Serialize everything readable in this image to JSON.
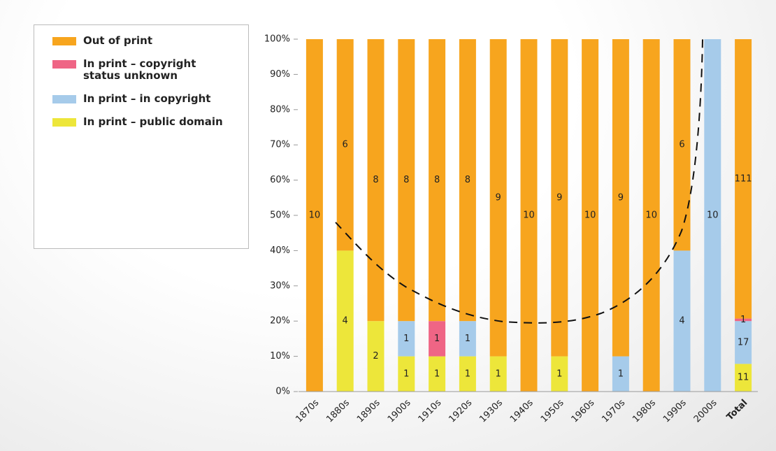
{
  "chart_data": {
    "type": "bar",
    "stacked": "percent",
    "categories": [
      "1870s",
      "1880s",
      "1890s",
      "1900s",
      "1910s",
      "1920s",
      "1930s",
      "1940s",
      "1950s",
      "1960s",
      "1970s",
      "1980s",
      "1990s",
      "2000s",
      "Total"
    ],
    "series": [
      {
        "name": "In print – public domain",
        "color": "#ede63a",
        "values": [
          0,
          4,
          2,
          1,
          1,
          1,
          1,
          0,
          1,
          0,
          0,
          0,
          0,
          0,
          11
        ]
      },
      {
        "name": "In print – in copyright",
        "color": "#a6cbea",
        "values": [
          0,
          0,
          0,
          1,
          0,
          1,
          0,
          0,
          0,
          0,
          1,
          0,
          4,
          10,
          17
        ]
      },
      {
        "name": "In print – copyright status unknown",
        "color": "#ef6585",
        "values": [
          0,
          0,
          0,
          0,
          1,
          0,
          0,
          0,
          0,
          0,
          0,
          0,
          0,
          0,
          1
        ]
      },
      {
        "name": "Out of print",
        "color": "#f7a51e",
        "values": [
          10,
          6,
          8,
          8,
          8,
          8,
          9,
          10,
          9,
          10,
          9,
          10,
          6,
          0,
          111
        ]
      }
    ],
    "ylim": [
      0,
      100
    ],
    "yticks": [
      {
        "value": 0,
        "label": "0%"
      },
      {
        "value": 10,
        "label": "10%"
      },
      {
        "value": 20,
        "label": "20%"
      },
      {
        "value": 30,
        "label": "30%"
      },
      {
        "value": 40,
        "label": "40%"
      },
      {
        "value": 50,
        "label": "50%"
      },
      {
        "value": 60,
        "label": "60%"
      },
      {
        "value": 70,
        "label": "70%"
      },
      {
        "value": 80,
        "label": "80%"
      },
      {
        "value": 90,
        "label": "90%"
      },
      {
        "value": 100,
        "label": "100%"
      }
    ],
    "legend": "left"
  }
}
